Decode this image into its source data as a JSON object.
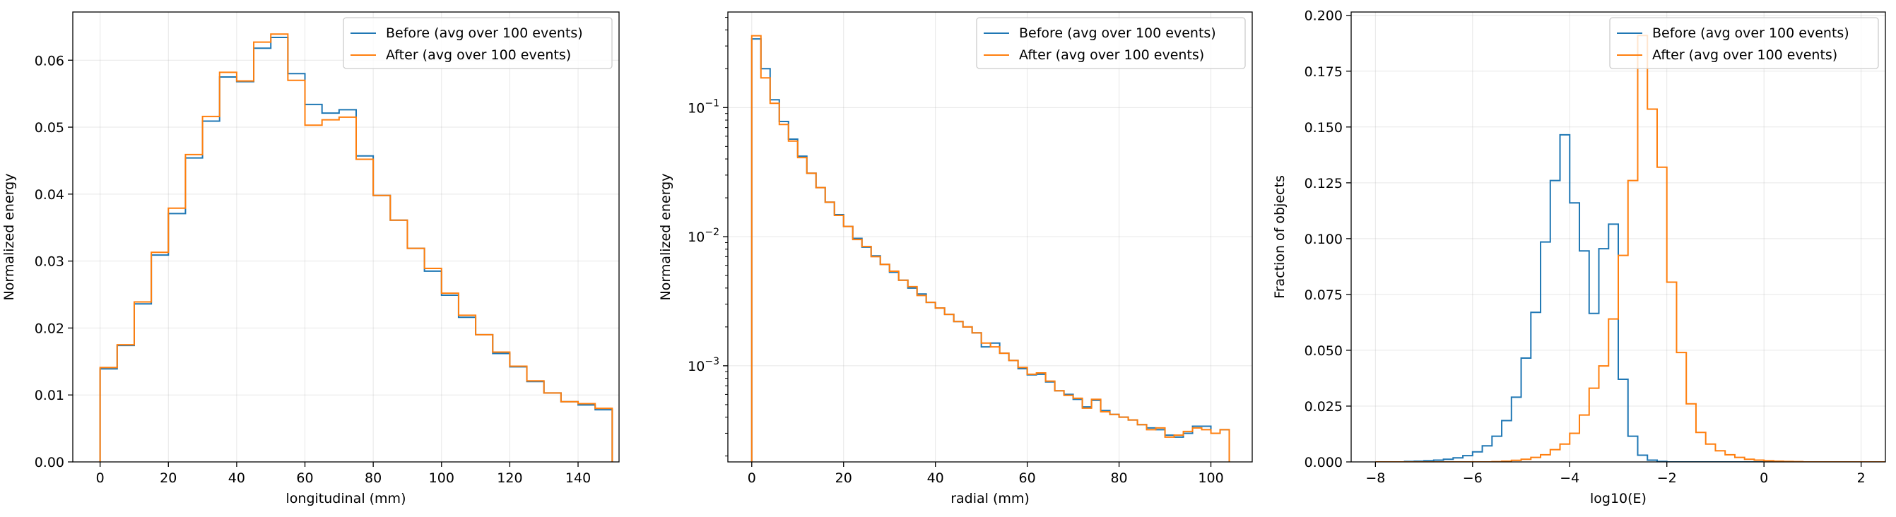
{
  "colors": {
    "before": "#1f77b4",
    "after": "#ff7f0e"
  },
  "chart_data": [
    {
      "type": "step",
      "xlabel": "longitudinal (mm)",
      "ylabel": "Normalized energy",
      "xlim": [
        -8,
        152
      ],
      "ylim": [
        0,
        0.0672
      ],
      "log_y": false,
      "grid": true,
      "legend_position": "top-right",
      "xticks": [
        {
          "v": 0,
          "label": "0"
        },
        {
          "v": 20,
          "label": "20"
        },
        {
          "v": 40,
          "label": "40"
        },
        {
          "v": 60,
          "label": "60"
        },
        {
          "v": 80,
          "label": "80"
        },
        {
          "v": 100,
          "label": "100"
        },
        {
          "v": 120,
          "label": "120"
        },
        {
          "v": 140,
          "label": "140"
        }
      ],
      "yticks": [
        {
          "v": 0,
          "label": "0.00"
        },
        {
          "v": 0.01,
          "label": "0.01"
        },
        {
          "v": 0.02,
          "label": "0.02"
        },
        {
          "v": 0.03,
          "label": "0.03"
        },
        {
          "v": 0.04,
          "label": "0.04"
        },
        {
          "v": 0.05,
          "label": "0.05"
        },
        {
          "v": 0.06,
          "label": "0.06"
        }
      ],
      "bin_edges_start": 0,
      "bin_width": 5,
      "series": [
        {
          "name": "Before (avg over 100 events)",
          "color": "before",
          "values": [
            0.0139,
            0.0174,
            0.0236,
            0.0309,
            0.0371,
            0.0454,
            0.0509,
            0.0575,
            0.0568,
            0.0618,
            0.0634,
            0.058,
            0.0534,
            0.0521,
            0.0526,
            0.0457,
            0.0398,
            0.0361,
            0.0319,
            0.0285,
            0.0249,
            0.0216,
            0.019,
            0.0162,
            0.0142,
            0.012,
            0.0103,
            0.009,
            0.0085,
            0.0078
          ]
        },
        {
          "name": "After (avg over 100 events)",
          "color": "after",
          "values": [
            0.0141,
            0.0175,
            0.0239,
            0.0313,
            0.0379,
            0.0459,
            0.0516,
            0.0582,
            0.0569,
            0.0627,
            0.0639,
            0.057,
            0.0503,
            0.0511,
            0.0515,
            0.0452,
            0.0398,
            0.0361,
            0.0319,
            0.0289,
            0.0252,
            0.0219,
            0.019,
            0.0164,
            0.0143,
            0.0121,
            0.0103,
            0.009,
            0.0087,
            0.008
          ]
        }
      ]
    },
    {
      "type": "step",
      "xlabel": "radial (mm)",
      "ylabel": "Normalized energy",
      "xlim": [
        -5.2,
        109
      ],
      "ylim": [
        0.00018,
        0.55
      ],
      "log_y": true,
      "grid": true,
      "legend_position": "top-right",
      "xticks": [
        {
          "v": 0,
          "label": "0"
        },
        {
          "v": 20,
          "label": "20"
        },
        {
          "v": 40,
          "label": "40"
        },
        {
          "v": 60,
          "label": "60"
        },
        {
          "v": 80,
          "label": "80"
        },
        {
          "v": 100,
          "label": "100"
        }
      ],
      "yticks": [
        {
          "v": 0.001,
          "base": "10",
          "exp": "−3"
        },
        {
          "v": 0.01,
          "base": "10",
          "exp": "−2"
        },
        {
          "v": 0.1,
          "base": "10",
          "exp": "−1"
        }
      ],
      "bin_edges_start": 0,
      "bin_width": 2,
      "series": [
        {
          "name": "Before (avg over 100 events)",
          "color": "before",
          "values": [
            0.34,
            0.2,
            0.115,
            0.078,
            0.057,
            0.042,
            0.031,
            0.024,
            0.0185,
            0.0148,
            0.012,
            0.0097,
            0.0083,
            0.0071,
            0.0061,
            0.0053,
            0.0046,
            0.004,
            0.0036,
            0.0031,
            0.0028,
            0.0025,
            0.0022,
            0.002,
            0.0018,
            0.0014,
            0.0015,
            0.00125,
            0.0011,
            0.00095,
            0.00085,
            0.00086,
            0.00075,
            0.00064,
            0.0006,
            0.00055,
            0.00048,
            0.00054,
            0.00045,
            0.00042,
            0.0004,
            0.00038,
            0.00035,
            0.00033,
            0.00032,
            0.00029,
            0.00028,
            0.0003,
            0.00034,
            0.00034,
            0.0003,
            0.00032
          ]
        },
        {
          "name": "After (avg over 100 events)",
          "color": "after",
          "values": [
            0.36,
            0.17,
            0.108,
            0.074,
            0.055,
            0.041,
            0.031,
            0.024,
            0.0185,
            0.0146,
            0.012,
            0.0095,
            0.0084,
            0.007,
            0.0061,
            0.0054,
            0.0046,
            0.0041,
            0.0035,
            0.0031,
            0.0028,
            0.0025,
            0.0022,
            0.002,
            0.0018,
            0.0015,
            0.0014,
            0.00125,
            0.0011,
            0.00097,
            0.00086,
            0.00088,
            0.00076,
            0.00064,
            0.00059,
            0.00056,
            0.00047,
            0.00055,
            0.00044,
            0.00042,
            0.0004,
            0.00038,
            0.00035,
            0.00032,
            0.00033,
            0.00028,
            0.00029,
            0.00031,
            0.00033,
            0.00032,
            0.0003,
            0.00032
          ]
        }
      ]
    },
    {
      "type": "step",
      "xlabel": "log10(E)",
      "ylabel": "Fraction of objects",
      "xlim": [
        -8.5,
        2.5
      ],
      "ylim": [
        0,
        0.2015
      ],
      "log_y": false,
      "grid": true,
      "legend_position": "top-right",
      "xticks": [
        {
          "v": -8,
          "label": "−8"
        },
        {
          "v": -6,
          "label": "−6"
        },
        {
          "v": -4,
          "label": "−4"
        },
        {
          "v": -2,
          "label": "−2"
        },
        {
          "v": 0,
          "label": "0"
        },
        {
          "v": 2,
          "label": "2"
        }
      ],
      "yticks": [
        {
          "v": 0,
          "label": "0.000"
        },
        {
          "v": 0.025,
          "label": "0.025"
        },
        {
          "v": 0.05,
          "label": "0.050"
        },
        {
          "v": 0.075,
          "label": "0.075"
        },
        {
          "v": 0.1,
          "label": "0.100"
        },
        {
          "v": 0.125,
          "label": "0.125"
        },
        {
          "v": 0.15,
          "label": "0.150"
        },
        {
          "v": 0.175,
          "label": "0.175"
        },
        {
          "v": 0.2,
          "label": "0.200"
        }
      ],
      "bin_edges_start": -8,
      "bin_width": 0.2,
      "series": [
        {
          "name": "Before (avg over 100 events)",
          "color": "before",
          "values": [
            0,
            0,
            0,
            0.0002,
            0.0003,
            0.0005,
            0.0008,
            0.0012,
            0.0018,
            0.0028,
            0.0045,
            0.0072,
            0.0115,
            0.0185,
            0.029,
            0.0465,
            0.067,
            0.0985,
            0.126,
            0.1465,
            0.116,
            0.0945,
            0.0665,
            0.0955,
            0.1065,
            0.037,
            0.0115,
            0.003,
            0.0008,
            0.0002,
            0,
            0,
            0,
            0,
            0,
            0,
            0,
            0,
            0,
            0,
            0,
            0,
            0,
            0,
            0,
            0,
            0,
            0,
            0,
            0,
            0,
            0,
            0,
            0,
            0
          ]
        },
        {
          "name": "After (avg over 100 events)",
          "color": "after",
          "values": [
            0,
            0,
            0,
            0,
            0,
            0,
            0,
            0,
            0,
            0,
            0,
            0,
            0.0001,
            0.0003,
            0.0007,
            0.0012,
            0.002,
            0.0032,
            0.0055,
            0.008,
            0.0128,
            0.021,
            0.033,
            0.043,
            0.064,
            0.0925,
            0.126,
            0.191,
            0.158,
            0.132,
            0.0805,
            0.049,
            0.026,
            0.0132,
            0.008,
            0.005,
            0.0032,
            0.002,
            0.0012,
            0.0008,
            0.0005,
            0.0003,
            0.0002,
            0.0001,
            0,
            0,
            0,
            0,
            0,
            0,
            0,
            0,
            0,
            0,
            0
          ]
        }
      ]
    }
  ]
}
